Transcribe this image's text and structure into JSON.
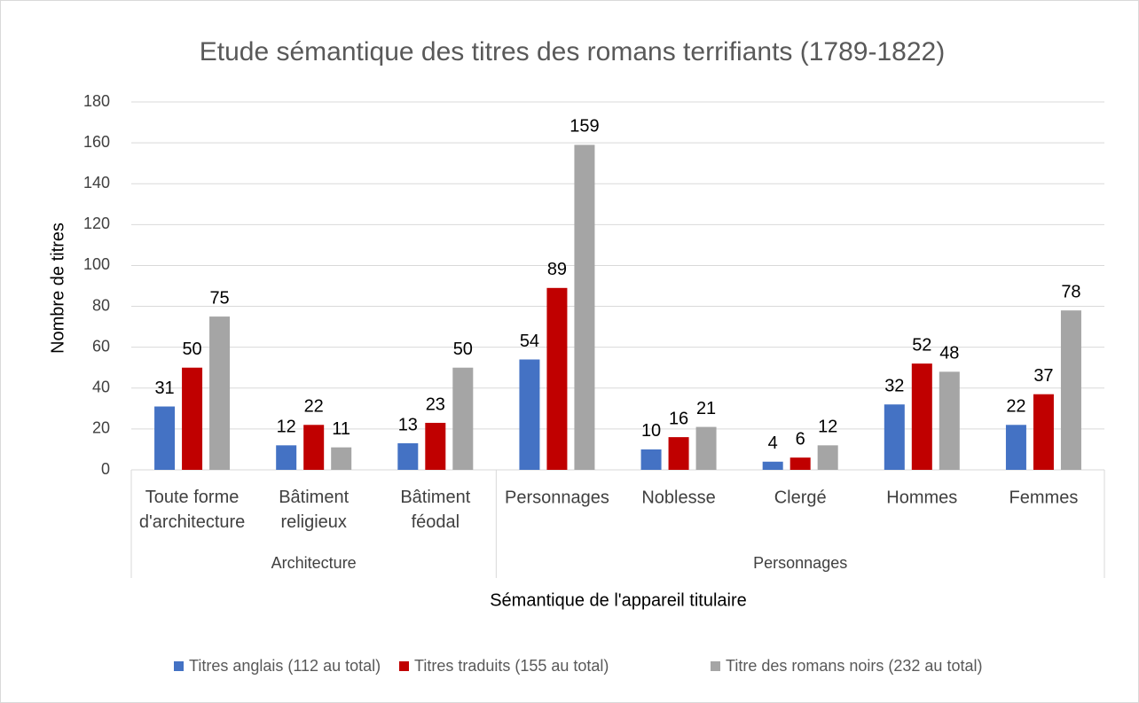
{
  "chart_data": {
    "type": "bar",
    "title": "Etude sémantique des titres des romans terrifiants (1789-1822)",
    "y_axis_label": "Nombre de titres",
    "x_axis_label": "Sémantique de l'appareil titulaire",
    "category_groups": [
      {
        "name": "Architecture",
        "categories": [
          "Toute forme\nd'architecture",
          "Bâtiment\nreligieux",
          "Bâtiment\nféodal"
        ]
      },
      {
        "name": "Personnages",
        "categories": [
          "Personnages",
          "Noblesse",
          "Clergé",
          "Hommes",
          "Femmes"
        ]
      }
    ],
    "series": [
      {
        "name": "Titres anglais (112 au total)",
        "color": "#4472c4",
        "values": [
          31,
          12,
          13,
          54,
          10,
          4,
          32,
          22
        ]
      },
      {
        "name": "Titres traduits (155 au total)",
        "color": "#c00000",
        "values": [
          50,
          22,
          23,
          89,
          16,
          6,
          52,
          37
        ]
      },
      {
        "name": "Titre des romans noirs (232 au total)",
        "color": "#a5a5a5",
        "values": [
          75,
          11,
          50,
          159,
          21,
          12,
          48,
          78
        ]
      }
    ],
    "ylim": [
      0,
      180
    ],
    "yticks": [
      0,
      20,
      40,
      60,
      80,
      100,
      120,
      140,
      160,
      180
    ],
    "grid": true,
    "legend": "bottom"
  }
}
